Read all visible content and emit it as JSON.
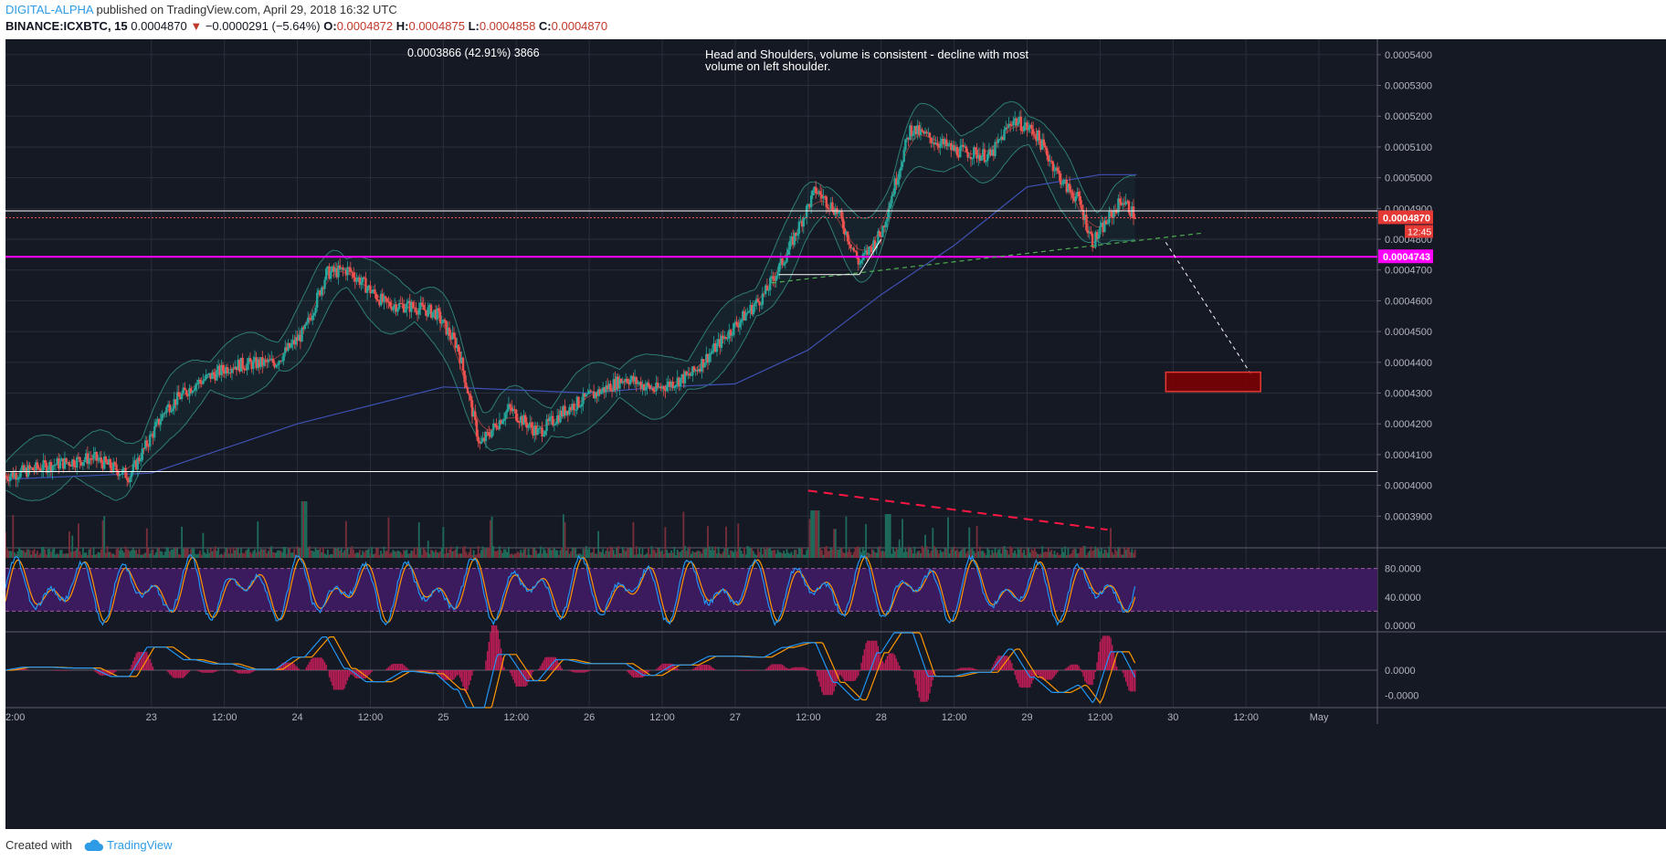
{
  "header": {
    "author": "DIGITAL-ALPHA",
    "published_text": "published on TradingView.com, April 29, 2018 16:32 UTC",
    "symbol": "BINANCE:ICXBTC, 15",
    "last_price": "0.0004870",
    "arrow": "▼",
    "change": "−0.0000291 (−5.64%)",
    "o_label": "O:",
    "o_value": "0.0004872",
    "h_label": "H:",
    "h_value": "0.0004875",
    "l_label": "L:",
    "l_value": "0.0004858",
    "c_label": "C:",
    "c_value": "0.0004870"
  },
  "footer": {
    "created_with": "Created with",
    "brand": "TradingView"
  },
  "colors": {
    "background": "#151924",
    "grid": "#2a2e39",
    "up": "#26a69a",
    "down": "#ef5350",
    "magenta": "#ff00ff",
    "stoch_k": "#2196f3",
    "stoch_d": "#ff9800",
    "stoch_band": "#3b1a5e",
    "macd_hist": "#e91e63",
    "target_box": "#b71c1c"
  },
  "chart_data": {
    "type": "candlestick",
    "symbol": "BINANCE:ICXBTC",
    "timeframe": "15",
    "annotations": {
      "measure": "0.0003866 (42.91%) 3866",
      "note": "Head and Shoulders, volume is consistent - decline with most volume on left shoulder."
    },
    "price_axis": {
      "ylim": [
        0.00038,
        0.000545
      ],
      "ticks": [
        "0.0005400",
        "0.0005300",
        "0.0005200",
        "0.0005100",
        "0.0005000",
        "0.0004900",
        "0.0004800",
        "0.0004700",
        "0.0004600",
        "0.0004500",
        "0.0004400",
        "0.0004300",
        "0.0004200",
        "0.0004100",
        "0.0004000",
        "0.0003900"
      ],
      "tick_values": [
        0.00054,
        0.00053,
        0.00052,
        0.00051,
        0.0005,
        0.00049,
        0.00048,
        0.00047,
        0.00046,
        0.00045,
        0.00044,
        0.00043,
        0.00042,
        0.00041,
        0.0004,
        0.00039
      ],
      "last_price_tag": "0.0004870",
      "countdown_tag": "12:45",
      "magenta_level_tag": "0.0004743"
    },
    "time_axis": {
      "labels": [
        "2:00",
        "23",
        "12:00",
        "24",
        "12:00",
        "25",
        "12:00",
        "26",
        "12:00",
        "27",
        "12:00",
        "28",
        "12:00",
        "29",
        "12:00",
        "30",
        "12:00",
        "May"
      ],
      "label_t": [
        0,
        1,
        1.5,
        2,
        2.5,
        3,
        3.5,
        4,
        4.5,
        5,
        5.5,
        6,
        6.5,
        7,
        7.5,
        8,
        8.5,
        9
      ],
      "range": [
        0,
        9.4
      ]
    },
    "price_path": [
      [
        0,
        0.000403
      ],
      [
        0.3,
        0.0004065
      ],
      [
        0.6,
        0.000409
      ],
      [
        0.85,
        0.000403
      ],
      [
        1.1,
        0.000425
      ],
      [
        1.3,
        0.000433
      ],
      [
        1.55,
        0.000439
      ],
      [
        1.85,
        0.00044
      ],
      [
        2.05,
        0.00045
      ],
      [
        2.2,
        0.000469
      ],
      [
        2.35,
        0.00047
      ],
      [
        2.6,
        0.000459
      ],
      [
        2.8,
        0.000458
      ],
      [
        2.95,
        0.000456
      ],
      [
        3.1,
        0.000445
      ],
      [
        3.25,
        0.000413
      ],
      [
        3.45,
        0.000425
      ],
      [
        3.65,
        0.000417
      ],
      [
        3.85,
        0.000425
      ],
      [
        4.05,
        0.00043
      ],
      [
        4.25,
        0.000435
      ],
      [
        4.45,
        0.000431
      ],
      [
        4.7,
        0.000436
      ],
      [
        5.0,
        0.000452
      ],
      [
        5.2,
        0.000462
      ],
      [
        5.35,
        0.000475
      ],
      [
        5.55,
        0.000496
      ],
      [
        5.7,
        0.000489
      ],
      [
        5.85,
        0.000472
      ],
      [
        6.0,
        0.000482
      ],
      [
        6.2,
        0.000516
      ],
      [
        6.5,
        0.000509
      ],
      [
        6.75,
        0.000507
      ],
      [
        6.9,
        0.000519
      ],
      [
        7.05,
        0.000515
      ],
      [
        7.25,
        0.000498
      ],
      [
        7.35,
        0.000493
      ],
      [
        7.45,
        0.000479
      ],
      [
        7.55,
        0.000486
      ],
      [
        7.65,
        0.000493
      ],
      [
        7.75,
        0.000487
      ]
    ],
    "overlays": {
      "bollinger_width": 7.5e-06,
      "ma_slow": [
        [
          0,
          0.000402
        ],
        [
          1,
          0.000404
        ],
        [
          2,
          0.00042
        ],
        [
          3,
          0.000432
        ],
        [
          4,
          0.00043
        ],
        [
          4.5,
          0.000432
        ],
        [
          5,
          0.000433
        ],
        [
          5.5,
          0.000444
        ],
        [
          6,
          0.000462
        ],
        [
          6.5,
          0.000478
        ],
        [
          7,
          0.000497
        ],
        [
          7.5,
          0.000501
        ],
        [
          7.75,
          0.000501
        ]
      ],
      "magenta_level": 0.0004743,
      "white_levels": [
        0.0004892,
        0.0004045
      ],
      "neckline": [
        [
          5.25,
          0.0004658
        ],
        [
          8.2,
          0.000482
        ]
      ],
      "projection": [
        [
          7.95,
          0.000479
        ],
        [
          8.55,
          0.000435
        ]
      ],
      "target_zone": {
        "t": [
          7.95,
          8.6
        ],
        "price": [
          0.0004305,
          0.0004368
        ]
      },
      "volume_trend": [
        [
          5.5,
          0.0003983
        ],
        [
          7.55,
          0.0003856
        ]
      ]
    },
    "volume": {
      "baseline_price": 0.00038
    },
    "stochastic": {
      "ylim": [
        0,
        100
      ],
      "ticks": [
        "80.0000",
        "40.0000",
        "0.0000"
      ],
      "tick_values": [
        80,
        40,
        0
      ],
      "band": [
        20,
        80
      ]
    },
    "macd": {
      "ylim": [
        -6e-06,
        6e-06
      ],
      "ticks": [
        "0.0000",
        "-0.0000"
      ],
      "tick_values": [
        0,
        -4e-06
      ]
    }
  }
}
